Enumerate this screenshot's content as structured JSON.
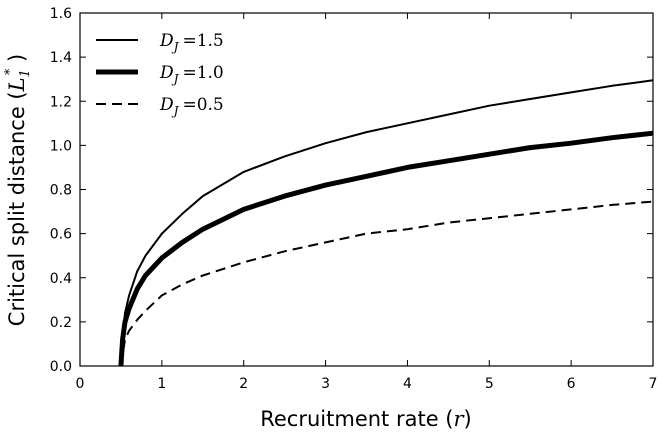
{
  "chart_data": {
    "type": "line",
    "xlabel": "Recruitment rate (r)",
    "ylabel": "Critical split distance (L1*)",
    "xlabel_text": "Recruitment rate",
    "ylabel_text": "Critical split distance",
    "xlim": [
      0,
      7
    ],
    "ylim": [
      0,
      1.6
    ],
    "xticks": [
      "0",
      "1",
      "2",
      "3",
      "4",
      "5",
      "6",
      "7"
    ],
    "yticks": [
      "0.0",
      "0.2",
      "0.4",
      "0.6",
      "0.8",
      "1.0",
      "1.2",
      "1.4",
      "1.6"
    ],
    "grid": false,
    "legend_position": "top-left",
    "series": [
      {
        "name": "D_J = 1.5",
        "legend_sym": "D",
        "legend_sub": "J",
        "legend_val": "=1.5",
        "style": "thin-solid",
        "x": [
          0.5,
          0.52,
          0.55,
          0.6,
          0.7,
          0.8,
          1.0,
          1.25,
          1.5,
          2.0,
          2.5,
          3.0,
          3.5,
          4.0,
          4.5,
          5.0,
          5.5,
          6.0,
          6.5,
          7.0
        ],
        "y": [
          0.0,
          0.14,
          0.24,
          0.32,
          0.43,
          0.5,
          0.6,
          0.69,
          0.77,
          0.88,
          0.95,
          1.01,
          1.06,
          1.1,
          1.14,
          1.18,
          1.21,
          1.24,
          1.27,
          1.295
        ]
      },
      {
        "name": "D_J = 1.0",
        "legend_sym": "D",
        "legend_sub": "J",
        "legend_val": "=1.0",
        "style": "thick-solid",
        "x": [
          0.5,
          0.52,
          0.55,
          0.6,
          0.7,
          0.8,
          1.0,
          1.25,
          1.5,
          2.0,
          2.5,
          3.0,
          3.5,
          4.0,
          4.5,
          5.0,
          5.5,
          6.0,
          6.5,
          7.0
        ],
        "y": [
          0.0,
          0.12,
          0.2,
          0.26,
          0.35,
          0.41,
          0.49,
          0.56,
          0.62,
          0.71,
          0.77,
          0.82,
          0.86,
          0.9,
          0.93,
          0.96,
          0.99,
          1.01,
          1.035,
          1.055
        ]
      },
      {
        "name": "D_J = 0.5",
        "legend_sym": "D",
        "legend_sub": "J",
        "legend_val": "=0.5",
        "style": "dashed",
        "x": [
          0.5,
          0.55,
          0.6,
          0.7,
          0.8,
          1.0,
          1.25,
          1.5,
          2.0,
          2.5,
          3.0,
          3.5,
          4.0,
          4.5,
          5.0,
          5.5,
          6.0,
          6.5,
          7.0
        ],
        "y": [
          0.0,
          0.12,
          0.16,
          0.21,
          0.25,
          0.32,
          0.37,
          0.41,
          0.47,
          0.52,
          0.56,
          0.6,
          0.62,
          0.65,
          0.67,
          0.69,
          0.71,
          0.73,
          0.745
        ]
      }
    ]
  }
}
